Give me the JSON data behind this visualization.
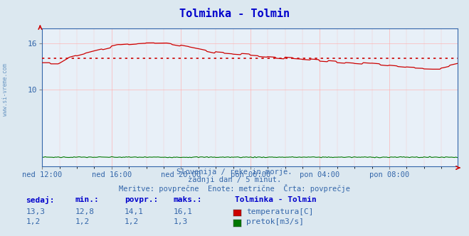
{
  "title": "Tolminka - Tolmin",
  "title_color": "#0000cc",
  "bg_color": "#dce8f0",
  "plot_bg_color": "#e8f0f8",
  "grid_color": "#ffb0b0",
  "xlabel_color": "#3366aa",
  "ylabel_color": "#3366aa",
  "x_tick_labels": [
    "ned 12:00",
    "ned 16:00",
    "ned 20:00",
    "pon 00:00",
    "pon 04:00",
    "pon 08:00"
  ],
  "x_tick_positions": [
    0,
    48,
    96,
    144,
    192,
    240
  ],
  "y_ticks": [
    10,
    16
  ],
  "ylim": [
    0,
    18
  ],
  "xlim": [
    0,
    287
  ],
  "watermark": "www.si-vreme.com",
  "subtitle1": "Slovenija / reke in morje.",
  "subtitle2": "zadnji dan / 5 minut.",
  "subtitle3": "Meritve: povprečne  Enote: metrične  Črta: povprečje",
  "legend_title": "Tolminka - Tolmin",
  "legend_items": [
    {
      "label": "temperatura[C]",
      "color": "#cc0000"
    },
    {
      "label": "pretok[m3/s]",
      "color": "#007700"
    }
  ],
  "stats_headers": [
    "sedaj:",
    "min.:",
    "povpr.:",
    "maks.:"
  ],
  "stats_temp": [
    "13,3",
    "12,8",
    "14,1",
    "16,1"
  ],
  "stats_flow": [
    "1,2",
    "1,2",
    "1,2",
    "1,3"
  ],
  "temp_line_color": "#cc0000",
  "flow_line_color": "#007700",
  "avg_value": 14.1,
  "dotted_line_color": "#cc0000",
  "arrow_color": "#cc0000",
  "spine_color": "#3366aa",
  "n_points": 288
}
